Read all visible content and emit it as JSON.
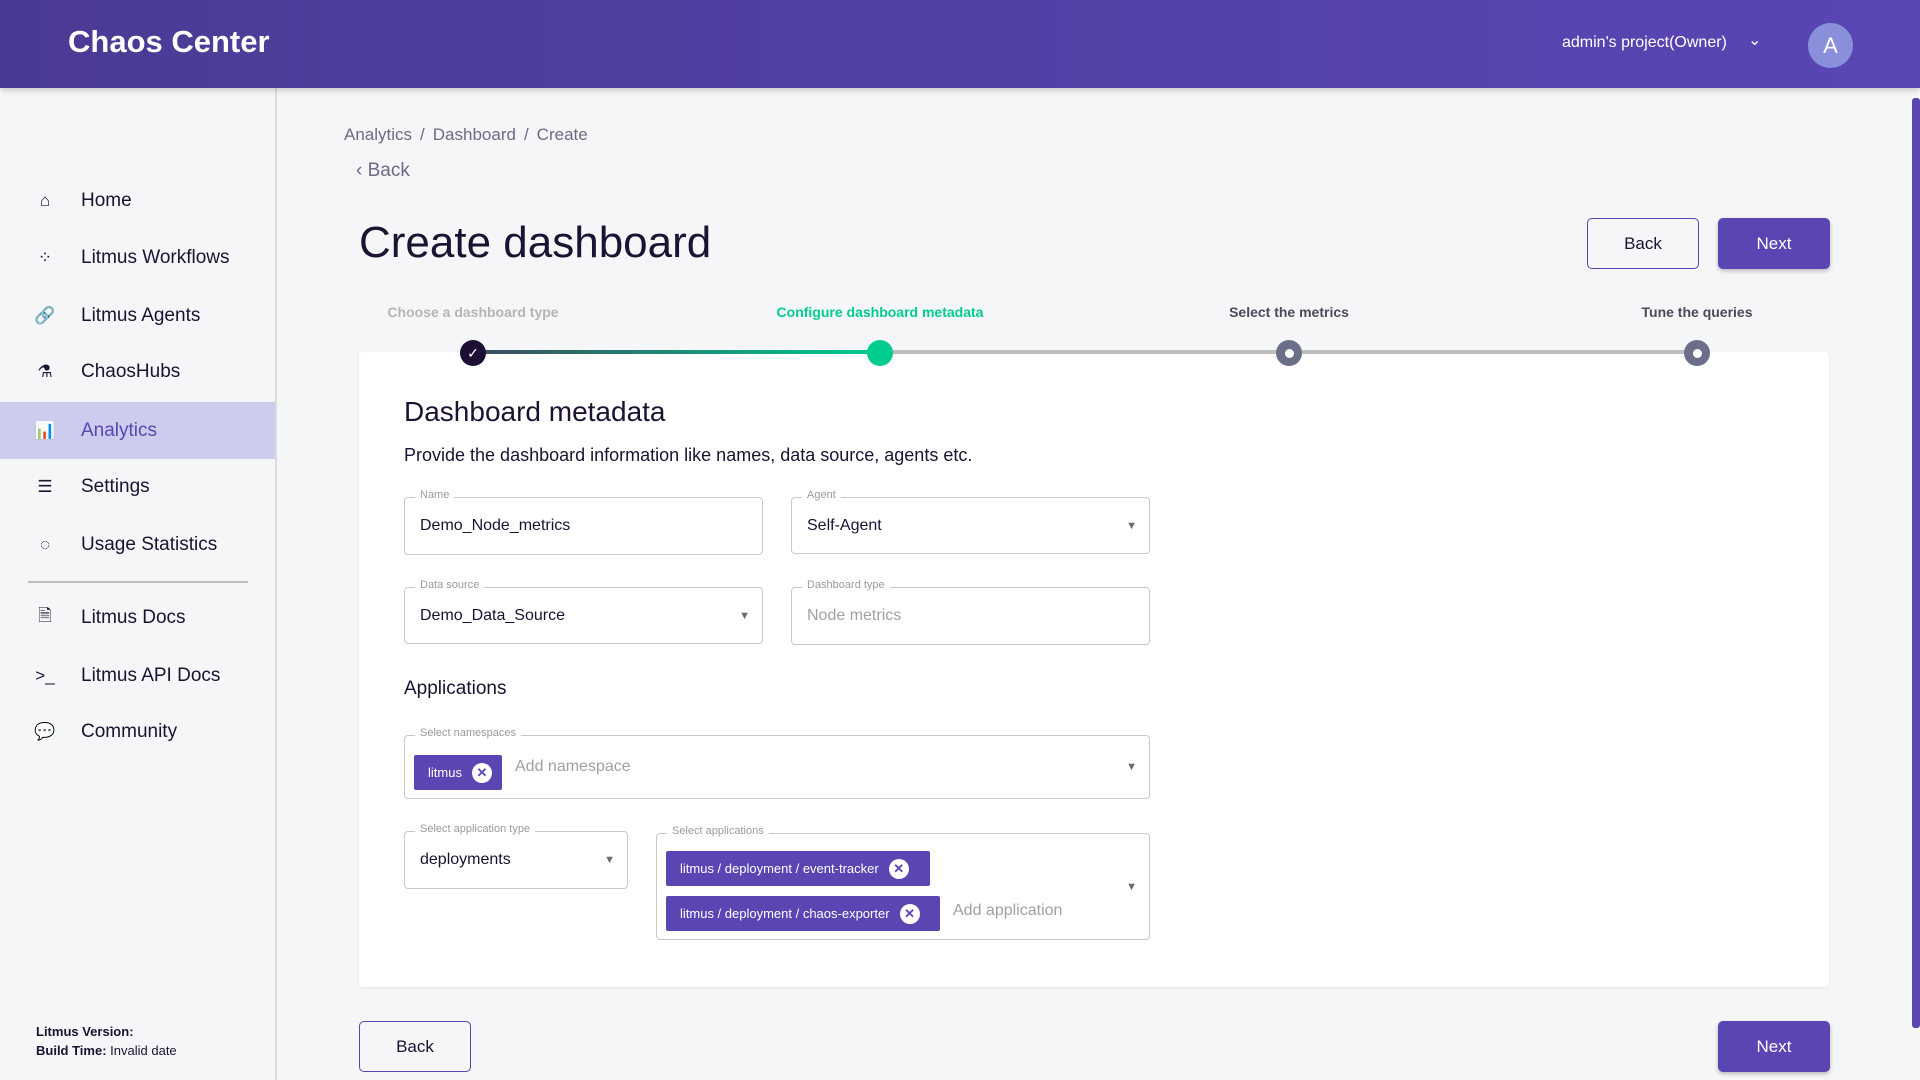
{
  "header": {
    "brand": "Chaos Center",
    "project": "admin's project(Owner)",
    "avatar": "A"
  },
  "sidebar": {
    "items": [
      {
        "label": "Home",
        "icon": "home-icon",
        "glyph": "⌂"
      },
      {
        "label": "Litmus Workflows",
        "icon": "workflows-icon",
        "glyph": "⁘"
      },
      {
        "label": "Litmus Agents",
        "icon": "link-icon",
        "glyph": "🔗"
      },
      {
        "label": "ChaosHubs",
        "icon": "flask-icon",
        "glyph": "⚗"
      },
      {
        "label": "Analytics",
        "icon": "analytics-icon",
        "glyph": "📊",
        "active": true
      },
      {
        "label": "Settings",
        "icon": "sliders-icon",
        "glyph": "☰"
      },
      {
        "label": "Usage Statistics",
        "icon": "usage-icon",
        "glyph": "◌"
      }
    ],
    "links": [
      {
        "label": "Litmus Docs",
        "icon": "document-icon",
        "glyph": "🗎"
      },
      {
        "label": "Litmus API Docs",
        "icon": "terminal-icon",
        "glyph": ">_"
      },
      {
        "label": "Community",
        "icon": "chat-icon",
        "glyph": "💬"
      }
    ],
    "version_label": "Litmus Version:",
    "build_label": "Build Time:",
    "build_value": "Invalid date"
  },
  "breadcrumb": [
    "Analytics",
    "/",
    "Dashboard",
    "/",
    "Create"
  ],
  "back_link": "Back",
  "page_title": "Create dashboard",
  "buttons": {
    "back": "Back",
    "next": "Next"
  },
  "stepper": {
    "steps": [
      {
        "label": "Choose a dashboard type",
        "state": "done"
      },
      {
        "label": "Configure dashboard metadata",
        "state": "active"
      },
      {
        "label": "Select the metrics",
        "state": "pending"
      },
      {
        "label": "Tune the queries",
        "state": "pending"
      }
    ],
    "colors": {
      "done": "#1c0f33",
      "active": "#00cc8f",
      "pending": "#6b6f8a"
    }
  },
  "form": {
    "title": "Dashboard metadata",
    "description": "Provide the dashboard information like names, data source, agents etc.",
    "name": {
      "label": "Name",
      "value": "Demo_Node_metrics"
    },
    "agent": {
      "label": "Agent",
      "value": "Self-Agent"
    },
    "data_source": {
      "label": "Data source",
      "value": "Demo_Data_Source"
    },
    "dashboard_type": {
      "label": "Dashboard type",
      "placeholder": "Node metrics"
    },
    "applications_heading": "Applications",
    "namespaces": {
      "label": "Select namespaces",
      "chips": [
        "litmus"
      ],
      "placeholder": "Add namespace"
    },
    "app_type": {
      "label": "Select application type",
      "value": "deployments"
    },
    "applications": {
      "label": "Select applications",
      "chips": [
        "litmus / deployment / event-tracker",
        "litmus / deployment / chaos-exporter"
      ],
      "placeholder": "Add application"
    }
  },
  "colors": {
    "accent": "#5b45b3",
    "header": "#4b3a94",
    "active_nav": "#cccdee"
  }
}
